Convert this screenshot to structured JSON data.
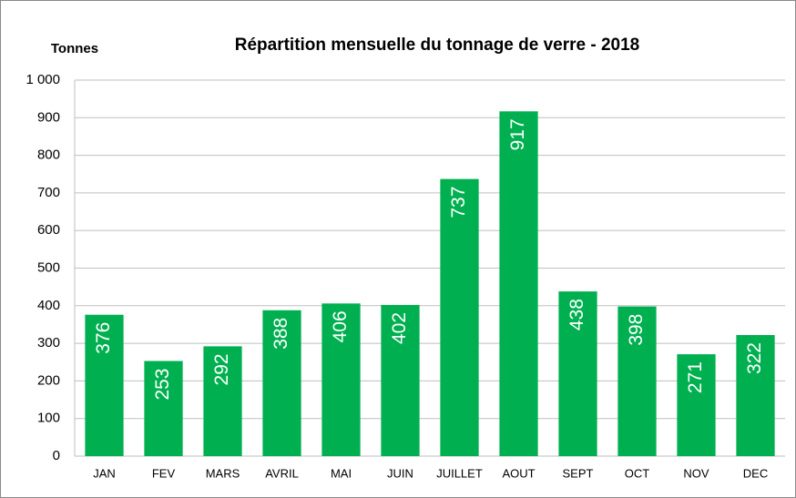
{
  "chart_data": {
    "type": "bar",
    "title": "Répartition mensuelle du tonnage de verre - 2018",
    "y_label": "Tonnes",
    "categories": [
      "JAN",
      "FEV",
      "MARS",
      "AVRIL",
      "MAI",
      "JUIN",
      "JUILLET",
      "AOUT",
      "SEPT",
      "OCT",
      "NOV",
      "DEC"
    ],
    "values": [
      376,
      253,
      292,
      388,
      406,
      402,
      737,
      917,
      438,
      398,
      271,
      322
    ],
    "color": "#00b050",
    "ylim": [
      0,
      1000
    ],
    "yticks": [
      0,
      100,
      200,
      300,
      400,
      500,
      600,
      700,
      800,
      900,
      {
        "value": 1000,
        "label": "1 000"
      }
    ],
    "grid": true,
    "data_labels": true
  }
}
